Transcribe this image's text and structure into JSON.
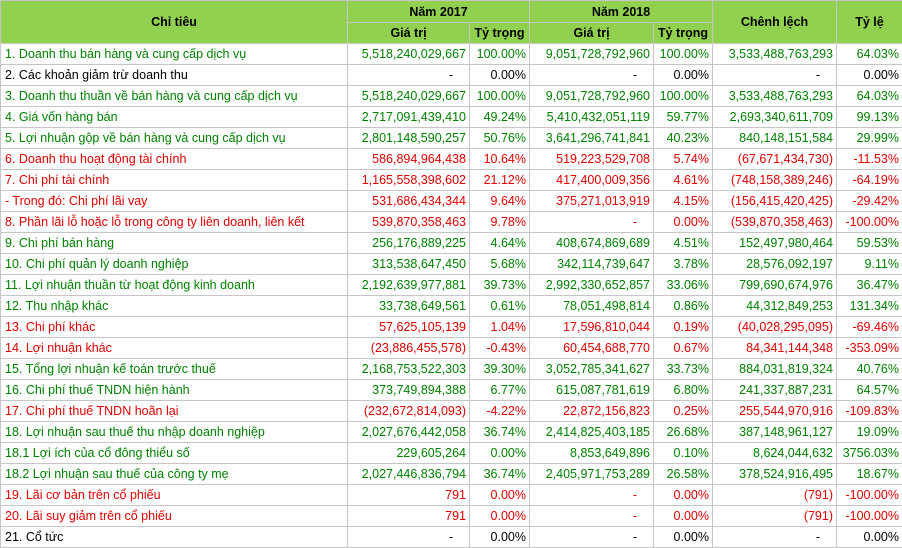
{
  "headers": {
    "chi_tieu": "Chỉ tiêu",
    "nam_2017": "Năm 2017",
    "nam_2018": "Năm 2018",
    "gia_tri": "Giá trị",
    "ty_trong": "Tỷ trọng",
    "chenh_lech": "Chênh lệch",
    "ty_le": "Tỷ lệ"
  },
  "rows": [
    {
      "label": "1. Doanh thu bán hàng và cung cấp dịch vụ",
      "v2017": "5,518,240,029,667",
      "p2017": "100.00%",
      "v2018": "9,051,728,792,960",
      "p2018": "100.00%",
      "diff": "3,533,488,763,293",
      "rate": "64.03%",
      "color": "green"
    },
    {
      "label": "2. Các khoản giảm trừ doanh thu",
      "v2017": "-",
      "p2017": "0.00%",
      "v2018": "-",
      "p2018": "0.00%",
      "diff": "-",
      "rate": "0.00%",
      "color": "black"
    },
    {
      "label": "3. Doanh thu thuần về bán hàng và cung cấp dịch vụ",
      "v2017": "5,518,240,029,667",
      "p2017": "100.00%",
      "v2018": "9,051,728,792,960",
      "p2018": "100.00%",
      "diff": "3,533,488,763,293",
      "rate": "64.03%",
      "color": "green"
    },
    {
      "label": "4. Giá vốn hàng bán",
      "v2017": "2,717,091,439,410",
      "p2017": "49.24%",
      "v2018": "5,410,432,051,119",
      "p2018": "59.77%",
      "diff": "2,693,340,611,709",
      "rate": "99.13%",
      "color": "green"
    },
    {
      "label": "5. Lợi nhuận gộp về bán hàng và cung cấp dịch vụ",
      "v2017": "2,801,148,590,257",
      "p2017": "50.76%",
      "v2018": "3,641,296,741,841",
      "p2018": "40.23%",
      "diff": "840,148,151,584",
      "rate": "29.99%",
      "color": "green"
    },
    {
      "label": "6. Doanh thu hoạt động tài chính",
      "v2017": "586,894,964,438",
      "p2017": "10.64%",
      "v2018": "519,223,529,708",
      "p2018": "5.74%",
      "diff": "(67,671,434,730)",
      "rate": "-11.53%",
      "color": "red"
    },
    {
      "label": "7. Chi phí tài chính",
      "v2017": "1,165,558,398,602",
      "p2017": "21.12%",
      "v2018": "417,400,009,356",
      "p2018": "4.61%",
      "diff": "(748,158,389,246)",
      "rate": "-64.19%",
      "color": "red"
    },
    {
      "label": " - Trong đó: Chi phí lãi vay",
      "v2017": "531,686,434,344",
      "p2017": "9.64%",
      "v2018": "375,271,013,919",
      "p2018": "4.15%",
      "diff": "(156,415,420,425)",
      "rate": "-29.42%",
      "color": "red"
    },
    {
      "label": "8. Phần lãi lỗ hoặc lỗ trong công ty liên doanh, liên kết",
      "v2017": "539,870,358,463",
      "p2017": "9.78%",
      "v2018": "-",
      "p2018": "0.00%",
      "diff": "(539,870,358,463)",
      "rate": "-100.00%",
      "color": "red"
    },
    {
      "label": "9. Chi phí bán hàng",
      "v2017": "256,176,889,225",
      "p2017": "4.64%",
      "v2018": "408,674,869,689",
      "p2018": "4.51%",
      "diff": "152,497,980,464",
      "rate": "59.53%",
      "color": "green"
    },
    {
      "label": "10. Chi phí quản lý doanh nghiệp",
      "v2017": "313,538,647,450",
      "p2017": "5.68%",
      "v2018": "342,114,739,647",
      "p2018": "3.78%",
      "diff": "28,576,092,197",
      "rate": "9.11%",
      "color": "green"
    },
    {
      "label": "11. Lợi nhuận thuần từ hoạt động kinh doanh",
      "v2017": "2,192,639,977,881",
      "p2017": "39.73%",
      "v2018": "2,992,330,652,857",
      "p2018": "33.06%",
      "diff": "799,690,674,976",
      "rate": "36.47%",
      "color": "green"
    },
    {
      "label": "12. Thu nhập khác",
      "v2017": "33,738,649,561",
      "p2017": "0.61%",
      "v2018": "78,051,498,814",
      "p2018": "0.86%",
      "diff": "44,312,849,253",
      "rate": "131.34%",
      "color": "green"
    },
    {
      "label": "13. Chi phí khác",
      "v2017": "57,625,105,139",
      "p2017": "1.04%",
      "v2018": "17,596,810,044",
      "p2018": "0.19%",
      "diff": "(40,028,295,095)",
      "rate": "-69.46%",
      "color": "red"
    },
    {
      "label": "14. Lợi nhuận khác",
      "v2017": "(23,886,455,578)",
      "p2017": "-0.43%",
      "v2018": "60,454,688,770",
      "p2018": "0.67%",
      "diff": "84,341,144,348",
      "rate": "-353.09%",
      "color": "red"
    },
    {
      "label": "15. Tổng lợi nhuận kế toán trước thuế",
      "v2017": "2,168,753,522,303",
      "p2017": "39.30%",
      "v2018": "3,052,785,341,627",
      "p2018": "33.73%",
      "diff": "884,031,819,324",
      "rate": "40.76%",
      "color": "green"
    },
    {
      "label": "16. Chi phí thuế TNDN hiện hành",
      "v2017": "373,749,894,388",
      "p2017": "6.77%",
      "v2018": "615,087,781,619",
      "p2018": "6.80%",
      "diff": "241,337,887,231",
      "rate": "64.57%",
      "color": "green"
    },
    {
      "label": "17. Chi phí thuế TNDN hoãn lại",
      "v2017": "(232,672,814,093)",
      "p2017": "-4.22%",
      "v2018": "22,872,156,823",
      "p2018": "0.25%",
      "diff": "255,544,970,916",
      "rate": "-109.83%",
      "color": "red"
    },
    {
      "label": "18. Lợi nhuận sau thuế thu nhập doanh nghiệp",
      "v2017": "2,027,676,442,058",
      "p2017": "36.74%",
      "v2018": "2,414,825,403,185",
      "p2018": "26.68%",
      "diff": "387,148,961,127",
      "rate": "19.09%",
      "color": "green"
    },
    {
      "label": "18.1 Lợi ích của cổ đông thiểu số",
      "v2017": "229,605,264",
      "p2017": "0.00%",
      "v2018": "8,853,649,896",
      "p2018": "0.10%",
      "diff": "8,624,044,632",
      "rate": "3756.03%",
      "color": "green"
    },
    {
      "label": "18.2 Lợi nhuận sau thuế của công ty mẹ",
      "v2017": "2,027,446,836,794",
      "p2017": "36.74%",
      "v2018": "2,405,971,753,289",
      "p2018": "26.58%",
      "diff": "378,524,916,495",
      "rate": "18.67%",
      "color": "green"
    },
    {
      "label": "19. Lãi cơ bản trên cổ phiếu",
      "v2017": "791",
      "p2017": "0.00%",
      "v2018": "-",
      "p2018": "0.00%",
      "diff": "(791)",
      "rate": "-100.00%",
      "color": "red"
    },
    {
      "label": "20. Lãi suy giảm trên cổ phiếu",
      "v2017": "791",
      "p2017": "0.00%",
      "v2018": "-",
      "p2018": "0.00%",
      "diff": "(791)",
      "rate": "-100.00%",
      "color": "red"
    },
    {
      "label": "21. Cổ tức",
      "v2017": "-",
      "p2017": "0.00%",
      "v2018": "-",
      "p2018": "0.00%",
      "diff": "-",
      "rate": "0.00%",
      "color": "black"
    }
  ]
}
